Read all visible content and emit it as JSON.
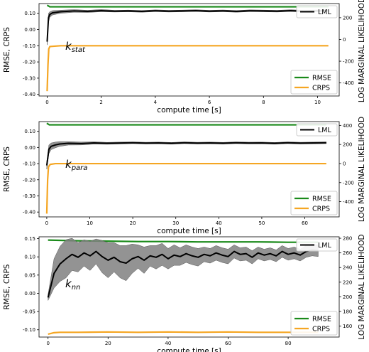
{
  "figure": {
    "colors": {
      "rmse": "#1a8a1a",
      "crps": "#f5a623",
      "lml": "#000000",
      "band": "#808080"
    }
  },
  "chart_data": [
    {
      "type": "line",
      "annotation": "k_{stat}",
      "annotation_main": "k",
      "annotation_sub": "stat",
      "xlabel": "compute time [s]",
      "ylabel": "RMSE, CRPS",
      "ylabel_right": "LOG MARGINAL LIKELIHOOD",
      "xlim": [
        -0.3,
        10.8
      ],
      "ylim": [
        -0.41,
        0.16
      ],
      "ylim_right": [
        -520,
        330
      ],
      "xticks": [
        0,
        2,
        4,
        6,
        8,
        10
      ],
      "yticks": [
        -0.4,
        -0.3,
        -0.2,
        -0.1,
        0.0,
        0.1
      ],
      "ytick_labels": [
        "-0.40",
        "-0.30",
        "-0.20",
        "-0.10",
        "0.00",
        "0.10"
      ],
      "yticks_right": [
        -400,
        -200,
        0,
        200
      ],
      "ytick_labels_right": [
        "-400",
        "-200",
        "0",
        "200"
      ],
      "legend_top": [
        "LML"
      ],
      "legend_bottom": [
        "RMSE",
        "CRPS"
      ],
      "series": [
        {
          "name": "RMSE",
          "axis": "left",
          "x": [
            0,
            0.05,
            0.1,
            1,
            3,
            5,
            7,
            9,
            10.4
          ],
          "y": [
            0.15,
            0.145,
            0.14,
            0.14,
            0.14,
            0.14,
            0.14,
            0.14,
            0.14
          ]
        },
        {
          "name": "CRPS",
          "axis": "left",
          "x": [
            0,
            0.03,
            0.06,
            0.1,
            0.5,
            2,
            4,
            6,
            8,
            10.4
          ],
          "y": [
            -0.38,
            -0.22,
            -0.12,
            -0.105,
            -0.1,
            -0.1,
            -0.1,
            -0.1,
            -0.1,
            -0.1
          ]
        },
        {
          "name": "LML",
          "axis": "right",
          "x": [
            0,
            0.05,
            0.1,
            0.2,
            0.5,
            1,
            1.5,
            2,
            2.5,
            3,
            3.5,
            4,
            4.5,
            5,
            5.5,
            6,
            6.5,
            7,
            7.5,
            8,
            8.5,
            9,
            9.5,
            10,
            10.4
          ],
          "y": [
            -20,
            200,
            230,
            245,
            255,
            262,
            258,
            265,
            260,
            262,
            258,
            264,
            260,
            262,
            265,
            260,
            263,
            258,
            264,
            262,
            260,
            265,
            260,
            263,
            266
          ],
          "band": [
            30,
            40,
            25,
            20,
            14,
            12,
            10,
            10,
            8,
            8,
            8,
            8,
            8,
            8,
            8,
            8,
            8,
            8,
            8,
            8,
            8,
            8,
            8,
            8,
            8
          ]
        }
      ]
    },
    {
      "type": "line",
      "annotation": "k_{para}",
      "annotation_main": "k",
      "annotation_sub": "para",
      "xlabel": "compute time [s]",
      "ylabel": "RMSE, CRPS",
      "ylabel_right": "LOG MARGINAL LIKELIHOOD",
      "xlim": [
        -1.8,
        68
      ],
      "ylim": [
        -0.43,
        0.16
      ],
      "ylim_right": [
        -560,
        440
      ],
      "xticks": [
        0,
        10,
        20,
        30,
        40,
        50,
        60
      ],
      "yticks": [
        -0.4,
        -0.3,
        -0.2,
        -0.1,
        0.0,
        0.1
      ],
      "ytick_labels": [
        "-0.40",
        "-0.30",
        "-0.20",
        "-0.10",
        "0.00",
        "0.10"
      ],
      "yticks_right": [
        -400,
        -200,
        0,
        200,
        400
      ],
      "ytick_labels_right": [
        "-400",
        "-200",
        "0",
        "200",
        "400"
      ],
      "legend_top": [
        "LML"
      ],
      "legend_bottom": [
        "RMSE",
        "CRPS"
      ],
      "series": [
        {
          "name": "RMSE",
          "axis": "left",
          "x": [
            0,
            0.3,
            0.6,
            5,
            15,
            25,
            35,
            45,
            55,
            65
          ],
          "y": [
            0.15,
            0.145,
            0.14,
            0.14,
            0.14,
            0.14,
            0.14,
            0.14,
            0.14,
            0.14
          ]
        },
        {
          "name": "CRPS",
          "axis": "left",
          "x": [
            0,
            0.2,
            0.4,
            0.8,
            2,
            10,
            20,
            30,
            40,
            50,
            60,
            65
          ],
          "y": [
            -0.41,
            -0.2,
            -0.12,
            -0.105,
            -0.1,
            -0.1,
            -0.1,
            -0.1,
            -0.1,
            -0.1,
            -0.1,
            -0.1
          ]
        },
        {
          "name": "LML",
          "axis": "right",
          "x": [
            0,
            0.5,
            1,
            2,
            3,
            5,
            8,
            11,
            14,
            17,
            20,
            23,
            26,
            29,
            32,
            35,
            38,
            41,
            44,
            47,
            50,
            53,
            56,
            59,
            62,
            65
          ],
          "y": [
            -20,
            150,
            180,
            195,
            205,
            212,
            210,
            216,
            212,
            215,
            218,
            214,
            216,
            212,
            218,
            214,
            216,
            213,
            218,
            215,
            216,
            212,
            218,
            214,
            216,
            218
          ],
          "band": [
            40,
            45,
            35,
            30,
            25,
            18,
            15,
            12,
            10,
            10,
            9,
            9,
            9,
            9,
            9,
            9,
            9,
            9,
            9,
            9,
            9,
            9,
            9,
            9,
            9,
            9
          ]
        }
      ]
    },
    {
      "type": "line",
      "annotation": "k_{nn}",
      "annotation_main": "k",
      "annotation_sub": "nn",
      "xlabel": "compute time [s]",
      "ylabel": "RMSE, CRPS",
      "ylabel_right": "LOG MARGINAL LIKELIHOOD",
      "xlim": [
        -3,
        97
      ],
      "ylim": [
        -0.12,
        0.155
      ],
      "ylim_right": [
        145,
        282
      ],
      "xticks": [
        0,
        20,
        40,
        60,
        80
      ],
      "yticks": [
        -0.1,
        -0.05,
        0.0,
        0.05,
        0.1,
        0.15
      ],
      "ytick_labels": [
        "-0.10",
        "-0.05",
        "0.00",
        "0.05",
        "0.10",
        "0.15"
      ],
      "yticks_right": [
        160,
        180,
        200,
        220,
        240,
        260,
        280
      ],
      "ytick_labels_right": [
        "160",
        "180",
        "200",
        "220",
        "240",
        "260",
        "280"
      ],
      "legend_top": [
        "LML"
      ],
      "legend_bottom": [
        "RMSE",
        "CRPS"
      ],
      "series": [
        {
          "name": "RMSE",
          "axis": "left",
          "x": [
            0,
            10,
            20,
            30,
            40,
            50,
            60,
            70,
            80,
            90
          ],
          "y": [
            0.146,
            0.144,
            0.143,
            0.142,
            0.142,
            0.141,
            0.141,
            0.141,
            0.14,
            0.14
          ]
        },
        {
          "name": "CRPS",
          "axis": "left",
          "x": [
            0,
            2,
            4,
            10,
            20,
            30,
            40,
            50,
            60,
            70,
            80,
            90
          ],
          "y": [
            -0.112,
            -0.108,
            -0.107,
            -0.107,
            -0.106,
            -0.107,
            -0.106,
            -0.107,
            -0.106,
            -0.107,
            -0.107,
            -0.107
          ]
        },
        {
          "name": "LML",
          "axis": "right",
          "x": [
            0,
            2,
            4,
            6,
            8,
            10,
            12,
            14,
            16,
            18,
            20,
            22,
            24,
            26,
            28,
            30,
            32,
            34,
            36,
            38,
            40,
            42,
            44,
            46,
            48,
            50,
            52,
            54,
            56,
            58,
            60,
            62,
            64,
            66,
            68,
            70,
            72,
            74,
            76,
            78,
            80,
            82,
            84,
            86,
            88,
            90
          ],
          "y": [
            199,
            232,
            245,
            252,
            258,
            254,
            260,
            256,
            262,
            255,
            250,
            254,
            248,
            246,
            252,
            255,
            250,
            256,
            254,
            258,
            252,
            257,
            255,
            259,
            256,
            254,
            258,
            256,
            260,
            257,
            255,
            262,
            258,
            259,
            254,
            260,
            257,
            259,
            256,
            262,
            258,
            260,
            257,
            262,
            264,
            263
          ],
          "band": [
            4,
            20,
            24,
            26,
            22,
            20,
            18,
            20,
            17,
            22,
            24,
            20,
            22,
            24,
            20,
            16,
            18,
            14,
            16,
            15,
            14,
            14,
            12,
            12,
            12,
            12,
            10,
            10,
            10,
            10,
            10,
            9,
            9,
            9,
            9,
            8,
            8,
            8,
            8,
            8,
            8,
            8,
            8,
            8,
            8,
            8
          ]
        }
      ]
    }
  ]
}
